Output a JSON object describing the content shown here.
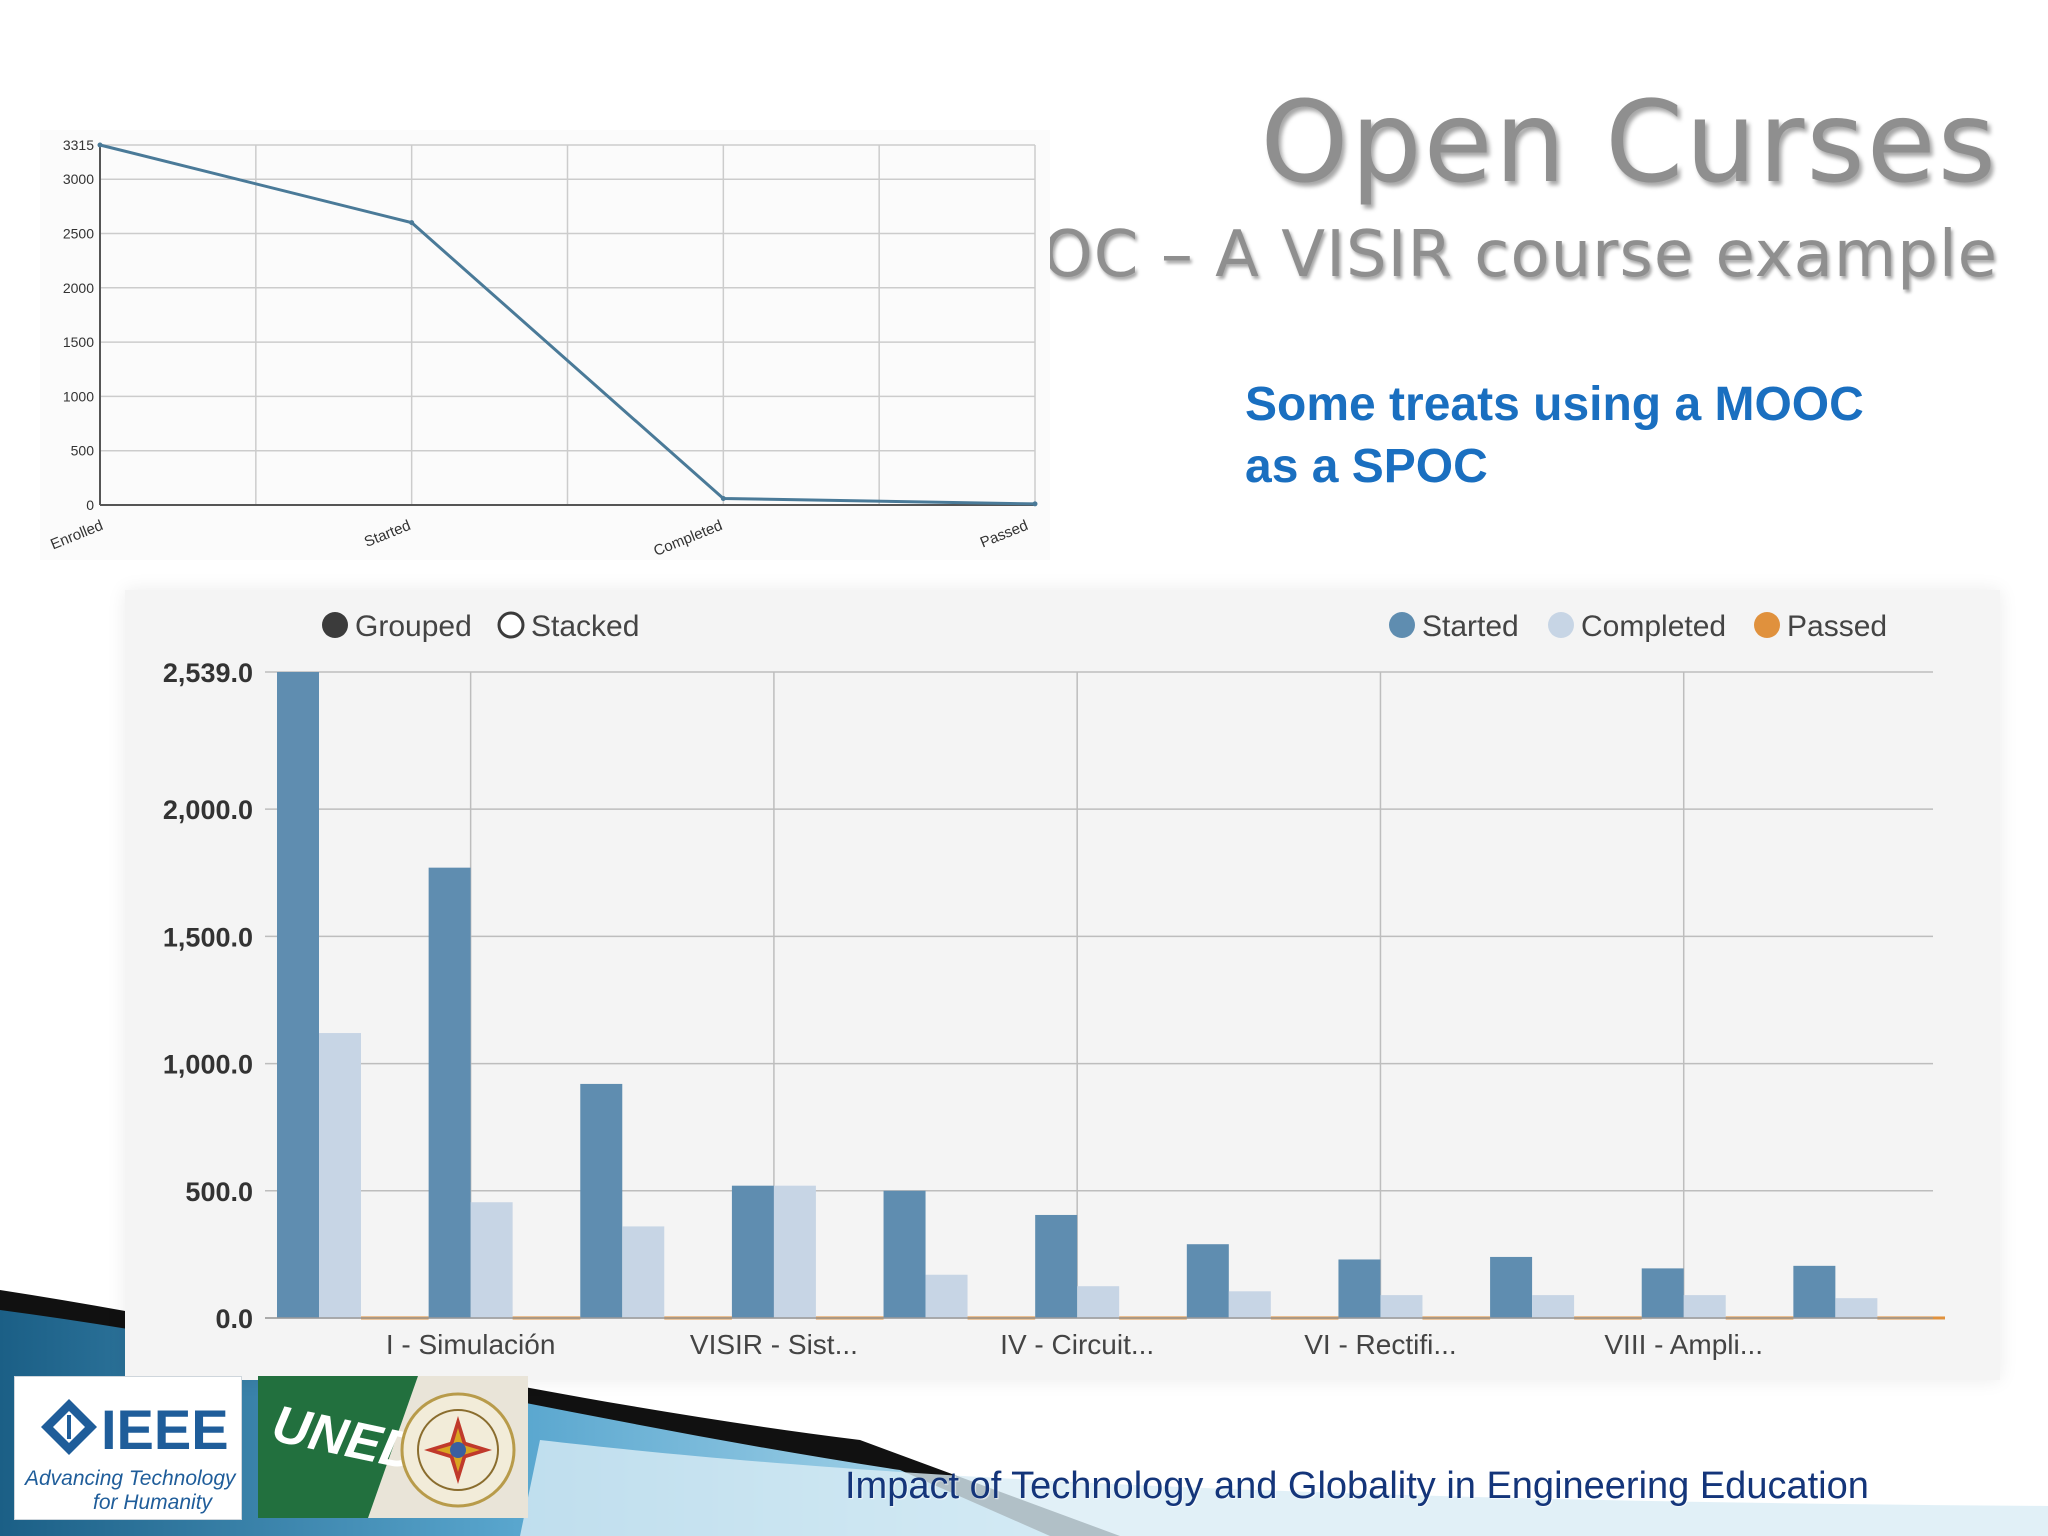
{
  "slide": {
    "title": "Open Curses",
    "subtitle": "MOOC – A VISIR course example",
    "treats_line1": "Some treats using a MOOC",
    "treats_line2": "as a SPOC",
    "footer": "Impact of Technology and Globality in Engineering Education"
  },
  "logos": {
    "ieee_name": "IEEE",
    "ieee_tagline1": "Advancing Technology",
    "ieee_tagline2": "for Humanity",
    "uned_name": "UNED"
  },
  "colors": {
    "line": "#4a7a98",
    "started": "#5f8db0",
    "completed": "#c7d5e5",
    "passed": "#e0913d"
  },
  "chart_data": [
    {
      "type": "line",
      "categories": [
        "Enrolled",
        "Started",
        "Completed",
        "Passed"
      ],
      "values": [
        3315,
        2600,
        60,
        10
      ],
      "yticks": [
        0,
        500,
        1000,
        1500,
        2000,
        2500,
        3000,
        3315
      ],
      "ylim": [
        0,
        3315
      ],
      "grid": true
    },
    {
      "type": "bar",
      "toggle_grouped": "Grouped",
      "toggle_stacked": "Stacked",
      "selected_mode": "Grouped",
      "legend_position": "top-right",
      "categories": [
        "",
        "I - Simulación",
        "",
        "VISIR - Sist...",
        "",
        "IV - Circuit...",
        "",
        "VI - Rectifi...",
        "",
        "VIII - Ampli...",
        ""
      ],
      "series": [
        {
          "name": "Started",
          "values": [
            2539,
            1770,
            920,
            520,
            500,
            405,
            290,
            230,
            240,
            195,
            205
          ]
        },
        {
          "name": "Completed",
          "values": [
            1120,
            455,
            360,
            520,
            170,
            125,
            105,
            90,
            90,
            90,
            78
          ]
        },
        {
          "name": "Passed",
          "values": [
            6,
            6,
            6,
            6,
            6,
            6,
            6,
            6,
            6,
            6,
            6
          ]
        }
      ],
      "yticks": [
        "0.0",
        "500.0",
        "1,000.0",
        "1,500.0",
        "2,000.0",
        "2,539.0"
      ],
      "ylim": [
        0,
        2539
      ],
      "grid": true
    }
  ]
}
